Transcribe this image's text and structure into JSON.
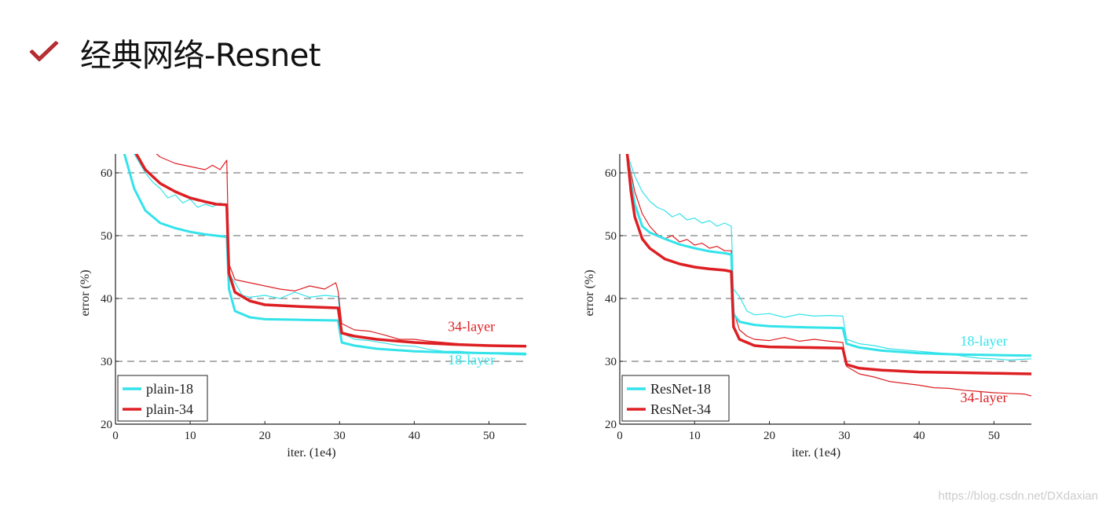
{
  "slide": {
    "title": "经典网络-Resnet",
    "icon": "check-icon",
    "accent": "#b3282d"
  },
  "watermark": "https://blog.csdn.net/DXdaxian",
  "colors": {
    "cyan": "#33e3ea",
    "red": "#dd1f23"
  },
  "chart_data": [
    {
      "type": "line",
      "title": "",
      "xlabel": "iter. (1e4)",
      "ylabel": "error (%)",
      "xlim": [
        0,
        55
      ],
      "ylim": [
        20,
        63
      ],
      "xticks": [
        0,
        10,
        20,
        30,
        40,
        50
      ],
      "yticks": [
        20,
        30,
        40,
        50,
        60
      ],
      "grid": "dashed horizontal",
      "legend": "bottom-left",
      "legend_entries": [
        {
          "name": "plain-18",
          "color": "#33e3ea"
        },
        {
          "name": "plain-34",
          "color": "#dd1f23"
        }
      ],
      "annotations": [
        {
          "text": "34-layer",
          "color": "#dd1f23",
          "x": 44.5,
          "y": 34.8
        },
        {
          "text": "18-layer",
          "color": "#33e3ea",
          "x": 44.5,
          "y": 29.5
        }
      ],
      "series": [
        {
          "name": "plain-18",
          "color": "#33e3ea",
          "width": 3,
          "x": [
            1.2,
            2.5,
            4,
            6,
            8,
            10,
            12,
            13.5,
            14.9,
            15.2,
            16,
            18,
            20,
            25,
            29.8,
            30.3,
            32,
            35,
            40,
            45,
            50,
            55
          ],
          "y": [
            63,
            57.5,
            54,
            52,
            51.2,
            50.6,
            50.2,
            50,
            49.8,
            41.5,
            38,
            37,
            36.7,
            36.6,
            36.5,
            33,
            32.5,
            32,
            31.6,
            31.4,
            31.3,
            31.2
          ]
        },
        {
          "name": "plain-34",
          "color": "#dd1f23",
          "width": 3.5,
          "x": [
            2.8,
            4,
            6,
            8,
            10,
            12,
            13.5,
            14.9,
            15.2,
            16,
            18,
            20,
            25,
            29.8,
            30.3,
            32,
            35,
            40,
            45,
            50,
            55
          ],
          "y": [
            63,
            60.5,
            58.3,
            57,
            56,
            55.4,
            55,
            54.9,
            44,
            41,
            39.6,
            39,
            38.7,
            38.5,
            34.5,
            34,
            33.5,
            33,
            32.7,
            32.5,
            32.4
          ]
        },
        {
          "name": "",
          "color": "#33e3ea",
          "width": 1.2,
          "x": [
            2.5,
            4,
            5,
            6,
            7,
            8,
            9,
            10,
            11,
            12,
            13,
            14,
            14.9,
            15.2,
            16,
            17,
            18,
            20,
            22,
            24,
            26,
            28,
            29.8,
            30.3,
            32,
            34,
            36,
            38,
            40,
            42,
            44,
            46,
            48,
            50,
            52,
            55
          ],
          "y": [
            63,
            60,
            58.5,
            57.5,
            56,
            56.5,
            55.2,
            55.8,
            54.5,
            55,
            54.6,
            55.2,
            54.8,
            44,
            42.5,
            40.5,
            40.2,
            40.5,
            40,
            41,
            40.2,
            40.5,
            40.3,
            34.5,
            33.5,
            33.3,
            32.9,
            32.5,
            32.4,
            31.9,
            31.6,
            31.6,
            31.4,
            31.3,
            31.1,
            31
          ]
        },
        {
          "name": "",
          "color": "#dd1f23",
          "width": 1.2,
          "x": [
            5.5,
            6,
            8,
            10,
            12,
            13,
            14,
            14.9,
            15.2,
            16,
            18,
            20,
            22,
            24,
            26,
            28,
            29.5,
            29.8,
            30.3,
            32,
            34,
            36,
            38,
            40,
            42,
            44,
            46,
            48,
            50,
            52,
            55
          ],
          "y": [
            63,
            62.5,
            61.5,
            61,
            60.5,
            61.2,
            60.5,
            62,
            45.5,
            43,
            42.5,
            42,
            41.5,
            41.2,
            42,
            41.5,
            42.5,
            41.2,
            36,
            35,
            34.8,
            34.2,
            33.5,
            33.5,
            33.2,
            33,
            32.8,
            32.6,
            32.5,
            32.4,
            32.3
          ]
        }
      ]
    },
    {
      "type": "line",
      "title": "",
      "xlabel": "iter. (1e4)",
      "ylabel": "error (%)",
      "xlim": [
        0,
        55
      ],
      "ylim": [
        20,
        63
      ],
      "xticks": [
        0,
        10,
        20,
        30,
        40,
        50
      ],
      "yticks": [
        20,
        30,
        40,
        50,
        60
      ],
      "grid": "dashed horizontal",
      "legend": "bottom-left",
      "legend_entries": [
        {
          "name": "ResNet-18",
          "color": "#33e3ea"
        },
        {
          "name": "ResNet-34",
          "color": "#dd1f23"
        }
      ],
      "annotations": [
        {
          "text": "18-layer",
          "color": "#33e3ea",
          "x": 45.5,
          "y": 32.5
        },
        {
          "text": "34-layer",
          "color": "#dd1f23",
          "x": 45.5,
          "y": 23.5
        }
      ],
      "series": [
        {
          "name": "ResNet-18",
          "color": "#33e3ea",
          "width": 3,
          "x": [
            1,
            1.5,
            2,
            3,
            4,
            6,
            8,
            10,
            12,
            14,
            14.9,
            15.2,
            16,
            18,
            20,
            25,
            29.8,
            30.3,
            32,
            35,
            40,
            45,
            50,
            55
          ],
          "y": [
            63,
            58.5,
            55,
            51.5,
            50.5,
            49.5,
            48.6,
            48,
            47.5,
            47.2,
            47,
            37.5,
            36.3,
            35.8,
            35.6,
            35.4,
            35.3,
            32.8,
            32.2,
            31.7,
            31.3,
            31.1,
            31,
            30.9
          ]
        },
        {
          "name": "ResNet-34",
          "color": "#dd1f23",
          "width": 3.5,
          "x": [
            1,
            1.5,
            2,
            3,
            4,
            6,
            8,
            10,
            12,
            14,
            14.9,
            15.2,
            16,
            18,
            20,
            25,
            29.8,
            30.3,
            32,
            35,
            40,
            45,
            50,
            55
          ],
          "y": [
            63,
            57,
            53,
            49.5,
            48,
            46.3,
            45.5,
            45,
            44.7,
            44.5,
            44.3,
            35.5,
            33.5,
            32.5,
            32.3,
            32.2,
            32.1,
            29.5,
            28.9,
            28.6,
            28.3,
            28.2,
            28.1,
            28
          ]
        },
        {
          "name": "",
          "color": "#33e3ea",
          "width": 1.2,
          "x": [
            1,
            2,
            3,
            4,
            5,
            6,
            7,
            8,
            9,
            10,
            11,
            12,
            13,
            14,
            14.9,
            15.2,
            16,
            17,
            18,
            20,
            22,
            24,
            26,
            28,
            29.8,
            30.3,
            32,
            34,
            36,
            38,
            40,
            42,
            44,
            46,
            48,
            50,
            52,
            55
          ],
          "y": [
            63,
            59.5,
            57,
            55.5,
            54.5,
            54,
            53,
            53.5,
            52.5,
            52.8,
            52,
            52.4,
            51.5,
            52,
            51.5,
            41.5,
            40.3,
            38,
            37.4,
            37.6,
            37,
            37.5,
            37.2,
            37.3,
            37.2,
            33.5,
            32.8,
            32.5,
            32,
            31.8,
            31.6,
            31.4,
            31.2,
            30.8,
            30.5,
            30.4,
            30.2,
            30.4
          ]
        },
        {
          "name": "",
          "color": "#dd1f23",
          "width": 1.2,
          "x": [
            1,
            2,
            3,
            4,
            5,
            6,
            7,
            8,
            9,
            10,
            11,
            12,
            13,
            14,
            14.9,
            15.2,
            16,
            17,
            18,
            20,
            22,
            24,
            26,
            28,
            29.8,
            30.3,
            32,
            34,
            36,
            38,
            40,
            42,
            44,
            46,
            48,
            50,
            52,
            54,
            55
          ],
          "y": [
            63,
            57,
            53.5,
            51.5,
            50.2,
            49.5,
            50,
            49,
            49.4,
            48.5,
            48.8,
            48,
            48.3,
            47.6,
            47.6,
            38,
            35,
            34,
            33.5,
            33.3,
            33.8,
            33.2,
            33.5,
            33.2,
            33,
            29.2,
            28,
            27.5,
            26.8,
            26.5,
            26.2,
            25.8,
            25.7,
            25.4,
            25.2,
            25,
            24.9,
            24.8,
            24.5
          ]
        }
      ]
    }
  ]
}
